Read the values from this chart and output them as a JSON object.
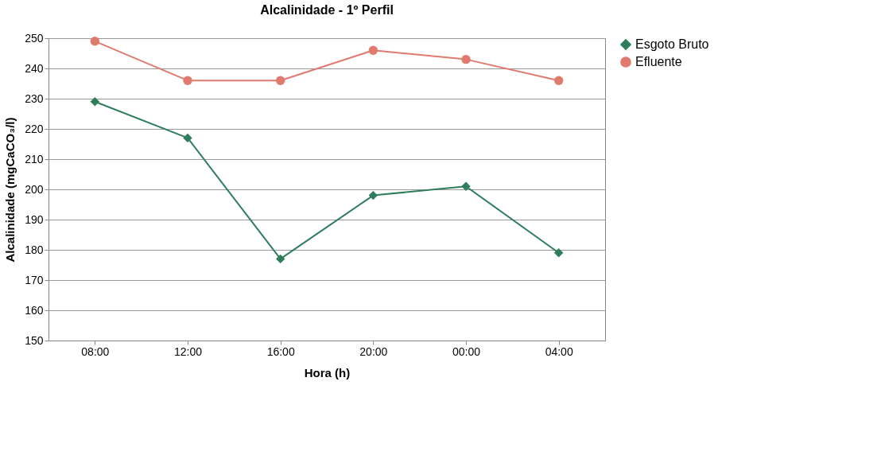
{
  "chart_data": {
    "type": "line",
    "title": "Alcalinidade - 1º Perfil",
    "xlabel": "Hora (h)",
    "ylabel": "Alcalinidade (mgCaCO₃/l)",
    "categories": [
      "08:00",
      "12:00",
      "16:00",
      "20:00",
      "00:00",
      "04:00"
    ],
    "series": [
      {
        "name": "Esgoto Bruto",
        "color": "#2e7d5b",
        "marker": "diamond",
        "values": [
          229,
          217,
          177,
          198,
          201,
          179
        ]
      },
      {
        "name": "Efluente",
        "color": "#e07a6e",
        "marker": "circle",
        "values": [
          249,
          236,
          236,
          246,
          243,
          236
        ]
      }
    ],
    "ylim": [
      150,
      250
    ],
    "yticks": [
      150,
      160,
      170,
      180,
      190,
      200,
      210,
      220,
      230,
      240,
      250
    ],
    "grid": "y",
    "legend": "right",
    "line_style": "solid"
  }
}
